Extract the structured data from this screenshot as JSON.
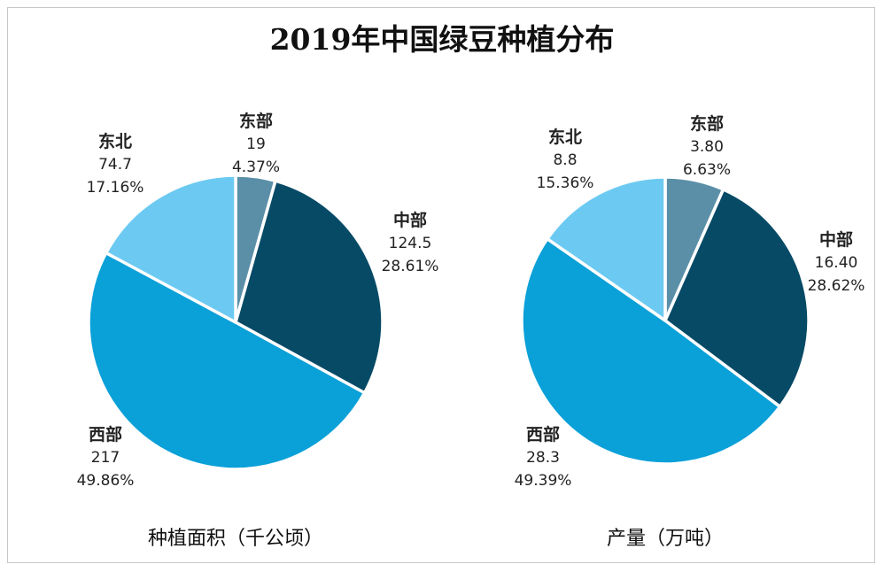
{
  "chart_data": [
    {
      "type": "pie",
      "title": "2019年中国绿豆种植分布",
      "subtitle": "种植面积（千公顷）",
      "categories": [
        "东部",
        "中部",
        "西部",
        "东北"
      ],
      "values": [
        19,
        124.5,
        217,
        74.7
      ],
      "value_labels": [
        "19",
        "124.5",
        "217",
        "74.7"
      ],
      "percent_labels": [
        "4.37%",
        "28.61%",
        "49.86%",
        "17.16%"
      ],
      "colors": [
        "#5b8fa8",
        "#064a66",
        "#0aa0d8",
        "#6ccaf2"
      ]
    },
    {
      "type": "pie",
      "subtitle": "产量（万吨）",
      "categories": [
        "东部",
        "中部",
        "西部",
        "东北"
      ],
      "values": [
        3.8,
        16.4,
        28.3,
        8.8
      ],
      "value_labels": [
        "3.80",
        "16.40",
        "28.3",
        "8.8"
      ],
      "percent_labels": [
        "6.63%",
        "28.62%",
        "49.39%",
        "15.36%"
      ],
      "colors": [
        "#5b8fa8",
        "#064a66",
        "#0aa0d8",
        "#6ccaf2"
      ]
    }
  ]
}
